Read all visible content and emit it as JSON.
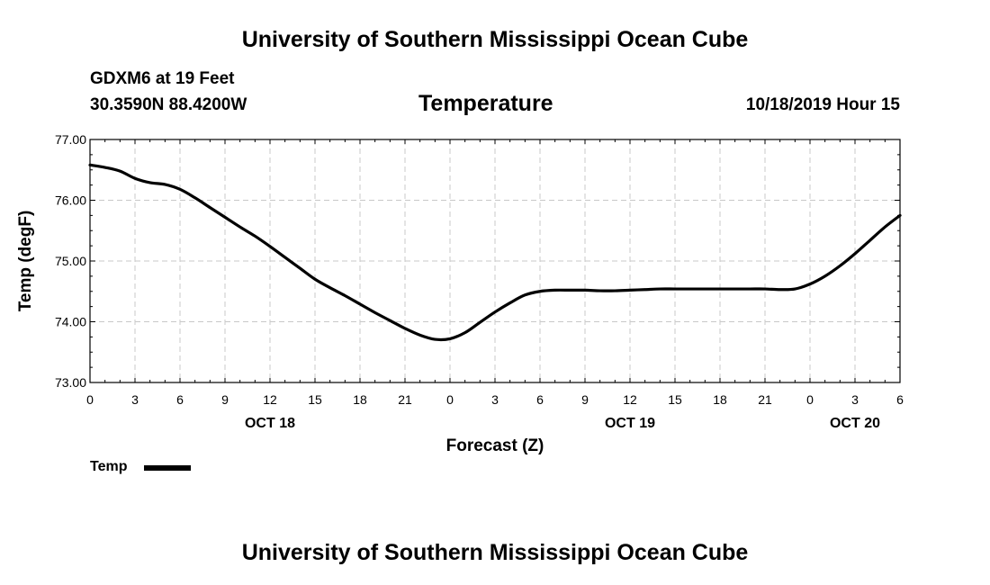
{
  "header": {
    "title_top": "University of Southern Mississippi Ocean Cube",
    "station": "GDXM6 at 19 Feet",
    "coords": "30.3590N 88.4200W",
    "chart_title": "Temperature",
    "datetime": "10/18/2019 Hour 15"
  },
  "footer": {
    "title_bottom": "University of Southern Mississippi Ocean Cube"
  },
  "legend": {
    "label": "Temp",
    "color": "#000000"
  },
  "chart_data": {
    "type": "line",
    "title": "Temperature",
    "xlabel": "Forecast (Z)",
    "ylabel": "Temp (degF)",
    "ylim": [
      73.0,
      77.0
    ],
    "xlim": [
      0,
      54
    ],
    "grid": true,
    "y_ticks": [
      "73.00",
      "74.00",
      "75.00",
      "76.00",
      "77.00"
    ],
    "y_tick_values": [
      73,
      74,
      75,
      76,
      77
    ],
    "x_ticks": [
      "0",
      "3",
      "6",
      "9",
      "12",
      "15",
      "18",
      "21",
      "0",
      "3",
      "6",
      "9",
      "12",
      "15",
      "18",
      "21",
      "0",
      "3",
      "6"
    ],
    "x_tick_hours": [
      0,
      3,
      6,
      9,
      12,
      15,
      18,
      21,
      24,
      27,
      30,
      33,
      36,
      39,
      42,
      45,
      48,
      51,
      54
    ],
    "day_labels": [
      {
        "label": "OCT 18",
        "hour": 12
      },
      {
        "label": "OCT 19",
        "hour": 36
      },
      {
        "label": "OCT 20",
        "hour": 51
      }
    ],
    "series": [
      {
        "name": "Temp",
        "color": "#000000",
        "x": [
          0,
          1,
          2,
          3,
          4,
          5,
          6,
          7,
          8,
          9,
          10,
          11,
          12,
          13,
          14,
          15,
          16,
          17,
          18,
          19,
          20,
          21,
          22,
          23,
          24,
          25,
          26,
          27,
          28,
          29,
          30,
          31,
          32,
          33,
          34,
          35,
          36,
          37,
          38,
          39,
          40,
          41,
          42,
          43,
          44,
          45,
          46,
          47,
          48,
          49,
          50,
          51,
          52,
          53,
          54
        ],
        "values": [
          76.58,
          76.54,
          76.48,
          76.36,
          76.29,
          76.26,
          76.18,
          76.04,
          75.88,
          75.72,
          75.56,
          75.41,
          75.24,
          75.06,
          74.88,
          74.7,
          74.56,
          74.43,
          74.29,
          74.15,
          74.02,
          73.89,
          73.78,
          73.71,
          73.72,
          73.82,
          73.99,
          74.16,
          74.31,
          74.44,
          74.5,
          74.52,
          74.52,
          74.52,
          74.51,
          74.51,
          74.52,
          74.53,
          74.54,
          74.54,
          74.54,
          74.54,
          74.54,
          74.54,
          74.54,
          74.54,
          74.53,
          74.54,
          74.62,
          74.75,
          74.92,
          75.12,
          75.34,
          75.56,
          75.75
        ]
      }
    ]
  }
}
